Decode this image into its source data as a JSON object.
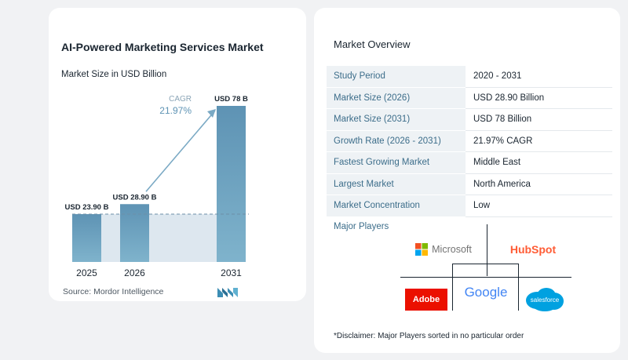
{
  "chart_card": {
    "title": "AI-Powered Marketing Services Market",
    "subtitle": "Market Size in USD Billion",
    "source": "Source: Mordor Intelligence",
    "cagr_label": "CAGR",
    "cagr_value": "21.97%"
  },
  "chart_data": {
    "type": "bar",
    "title": "AI-Powered Marketing Services Market",
    "subtitle": "Market Size in USD Billion",
    "categories": [
      "2025",
      "2026",
      "2031"
    ],
    "values": [
      23.9,
      28.9,
      78
    ],
    "data_labels": [
      "USD 23.90 B",
      "USD 28.90 B",
      "USD 78 B"
    ],
    "ylim": [
      0,
      80
    ],
    "grid": false,
    "annotation": {
      "label": "CAGR",
      "value": "21.97%"
    },
    "colors": {
      "bar_light": "#7fb3cc",
      "bar_dark": "#5e93b4",
      "band": "#dde7ef",
      "arrow": "#7aa9c4"
    }
  },
  "overview": {
    "title": "Market Overview",
    "rows": [
      {
        "label": "Study Period",
        "value": "2020 - 2031"
      },
      {
        "label": "Market Size (2026)",
        "value": "USD 28.90 Billion"
      },
      {
        "label": "Market Size (2031)",
        "value": "USD 78 Billion"
      },
      {
        "label": "Growth Rate (2026 - 2031)",
        "value": "21.97% CAGR"
      },
      {
        "label": "Fastest Growing Market",
        "value": "Middle East"
      },
      {
        "label": "Largest Market",
        "value": "North America"
      },
      {
        "label": "Market Concentration",
        "value": "Low"
      }
    ]
  },
  "players": {
    "title": "Major Players",
    "logos": [
      "Microsoft",
      "HubSpot",
      "Adobe",
      "Google",
      "salesforce"
    ]
  },
  "disclaimer": "*Disclaimer: Major Players sorted in no particular order"
}
